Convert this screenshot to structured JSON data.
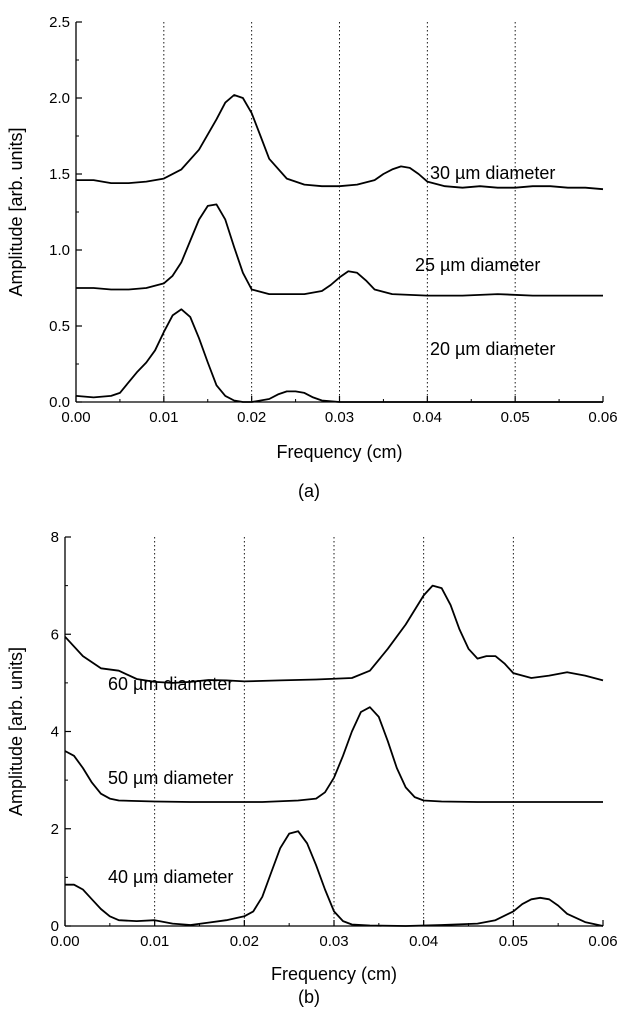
{
  "chart_data": [
    {
      "type": "line",
      "panel_label": "(a)",
      "xlabel": "Frequency (cm)",
      "ylabel": "Amplitude [arb. units]",
      "xlim": [
        0,
        0.06
      ],
      "ylim": [
        0,
        2.5
      ],
      "xticks": [
        "0.00",
        "0.01",
        "0.02",
        "0.03",
        "0.04",
        "0.05",
        "0.06"
      ],
      "yticks": [
        "0.0",
        "0.5",
        "1.0",
        "1.5",
        "2.0",
        "2.5"
      ],
      "vertical_gridlines": [
        0.01,
        0.02,
        0.03,
        0.04,
        0.05
      ],
      "series": [
        {
          "label": "30 µm diameter",
          "x": [
            0,
            0.002,
            0.004,
            0.006,
            0.008,
            0.01,
            0.012,
            0.014,
            0.016,
            0.017,
            0.018,
            0.019,
            0.02,
            0.021,
            0.022,
            0.024,
            0.026,
            0.028,
            0.03,
            0.032,
            0.034,
            0.035,
            0.036,
            0.037,
            0.038,
            0.039,
            0.04,
            0.042,
            0.044,
            0.046,
            0.048,
            0.05,
            0.052,
            0.054,
            0.056,
            0.058,
            0.06
          ],
          "y": [
            1.46,
            1.46,
            1.44,
            1.44,
            1.45,
            1.47,
            1.53,
            1.66,
            1.86,
            1.97,
            2.02,
            2.0,
            1.9,
            1.75,
            1.6,
            1.47,
            1.43,
            1.42,
            1.42,
            1.43,
            1.46,
            1.5,
            1.53,
            1.55,
            1.54,
            1.5,
            1.45,
            1.42,
            1.41,
            1.42,
            1.41,
            1.41,
            1.42,
            1.42,
            1.41,
            1.41,
            1.4
          ]
        },
        {
          "label": "25 µm diameter",
          "x": [
            0,
            0.002,
            0.004,
            0.006,
            0.008,
            0.01,
            0.011,
            0.012,
            0.013,
            0.014,
            0.015,
            0.016,
            0.017,
            0.018,
            0.019,
            0.02,
            0.022,
            0.024,
            0.026,
            0.028,
            0.029,
            0.03,
            0.031,
            0.032,
            0.033,
            0.034,
            0.036,
            0.04,
            0.044,
            0.048,
            0.052,
            0.056,
            0.06
          ],
          "y": [
            0.75,
            0.75,
            0.74,
            0.74,
            0.75,
            0.78,
            0.83,
            0.92,
            1.06,
            1.2,
            1.29,
            1.3,
            1.2,
            1.02,
            0.85,
            0.74,
            0.71,
            0.71,
            0.71,
            0.73,
            0.77,
            0.82,
            0.86,
            0.85,
            0.8,
            0.74,
            0.71,
            0.7,
            0.7,
            0.71,
            0.7,
            0.7,
            0.7
          ]
        },
        {
          "label": "20 µm diameter",
          "x": [
            0,
            0.002,
            0.004,
            0.005,
            0.006,
            0.007,
            0.008,
            0.009,
            0.01,
            0.011,
            0.012,
            0.013,
            0.014,
            0.015,
            0.016,
            0.017,
            0.018,
            0.019,
            0.02,
            0.022,
            0.023,
            0.024,
            0.025,
            0.026,
            0.027,
            0.028,
            0.03,
            0.035,
            0.04,
            0.045,
            0.05,
            0.055,
            0.06
          ],
          "y": [
            0.04,
            0.03,
            0.04,
            0.06,
            0.13,
            0.2,
            0.26,
            0.34,
            0.46,
            0.57,
            0.61,
            0.56,
            0.42,
            0.26,
            0.11,
            0.04,
            0.01,
            0.0,
            0.0,
            0.02,
            0.05,
            0.07,
            0.07,
            0.06,
            0.03,
            0.01,
            0.0,
            0.0,
            0.0,
            0.0,
            0.0,
            0.0,
            0.0
          ]
        }
      ]
    },
    {
      "type": "line",
      "panel_label": "(b)",
      "xlabel": "Frequency (cm)",
      "ylabel": "Amplitude [arb. units]",
      "xlim": [
        0,
        0.06
      ],
      "ylim": [
        0,
        8
      ],
      "xticks": [
        "0.00",
        "0.01",
        "0.02",
        "0.03",
        "0.04",
        "0.05",
        "0.06"
      ],
      "yticks": [
        "0",
        "2",
        "4",
        "6",
        "8"
      ],
      "vertical_gridlines": [
        0.01,
        0.02,
        0.03,
        0.04,
        0.05
      ],
      "series": [
        {
          "label": "60 µm diameter",
          "x": [
            0,
            0.002,
            0.004,
            0.006,
            0.008,
            0.01,
            0.012,
            0.014,
            0.016,
            0.018,
            0.02,
            0.024,
            0.028,
            0.032,
            0.034,
            0.036,
            0.038,
            0.04,
            0.041,
            0.042,
            0.043,
            0.044,
            0.045,
            0.046,
            0.047,
            0.048,
            0.049,
            0.05,
            0.052,
            0.054,
            0.056,
            0.058,
            0.06
          ],
          "y": [
            5.95,
            5.55,
            5.3,
            5.25,
            5.08,
            5.02,
            5.0,
            5.02,
            5.06,
            5.05,
            5.03,
            5.05,
            5.07,
            5.1,
            5.25,
            5.7,
            6.2,
            6.8,
            7.0,
            6.95,
            6.6,
            6.1,
            5.7,
            5.5,
            5.55,
            5.55,
            5.4,
            5.2,
            5.1,
            5.15,
            5.22,
            5.15,
            5.05
          ]
        },
        {
          "label": "50 µm diameter",
          "x": [
            0,
            0.001,
            0.002,
            0.003,
            0.004,
            0.005,
            0.006,
            0.01,
            0.014,
            0.018,
            0.022,
            0.026,
            0.028,
            0.029,
            0.03,
            0.031,
            0.032,
            0.033,
            0.034,
            0.035,
            0.036,
            0.037,
            0.038,
            0.039,
            0.04,
            0.042,
            0.046,
            0.05,
            0.054,
            0.058,
            0.06
          ],
          "y": [
            3.6,
            3.5,
            3.25,
            2.95,
            2.72,
            2.62,
            2.58,
            2.56,
            2.55,
            2.55,
            2.55,
            2.58,
            2.62,
            2.75,
            3.05,
            3.5,
            4.0,
            4.4,
            4.5,
            4.3,
            3.8,
            3.25,
            2.85,
            2.65,
            2.58,
            2.56,
            2.55,
            2.55,
            2.55,
            2.55,
            2.55
          ]
        },
        {
          "label": "40 µm diameter",
          "x": [
            0,
            0.001,
            0.002,
            0.003,
            0.004,
            0.005,
            0.006,
            0.008,
            0.01,
            0.012,
            0.014,
            0.016,
            0.018,
            0.02,
            0.021,
            0.022,
            0.023,
            0.024,
            0.025,
            0.026,
            0.027,
            0.028,
            0.029,
            0.03,
            0.031,
            0.032,
            0.034,
            0.038,
            0.042,
            0.046,
            0.048,
            0.05,
            0.051,
            0.052,
            0.053,
            0.054,
            0.055,
            0.056,
            0.058,
            0.06
          ],
          "y": [
            0.85,
            0.85,
            0.75,
            0.55,
            0.35,
            0.2,
            0.12,
            0.1,
            0.12,
            0.05,
            0.02,
            0.07,
            0.12,
            0.2,
            0.3,
            0.6,
            1.1,
            1.6,
            1.9,
            1.95,
            1.7,
            1.25,
            0.75,
            0.3,
            0.1,
            0.03,
            0.01,
            0.0,
            0.02,
            0.05,
            0.12,
            0.3,
            0.45,
            0.55,
            0.58,
            0.55,
            0.42,
            0.25,
            0.08,
            0.0
          ]
        }
      ]
    }
  ]
}
